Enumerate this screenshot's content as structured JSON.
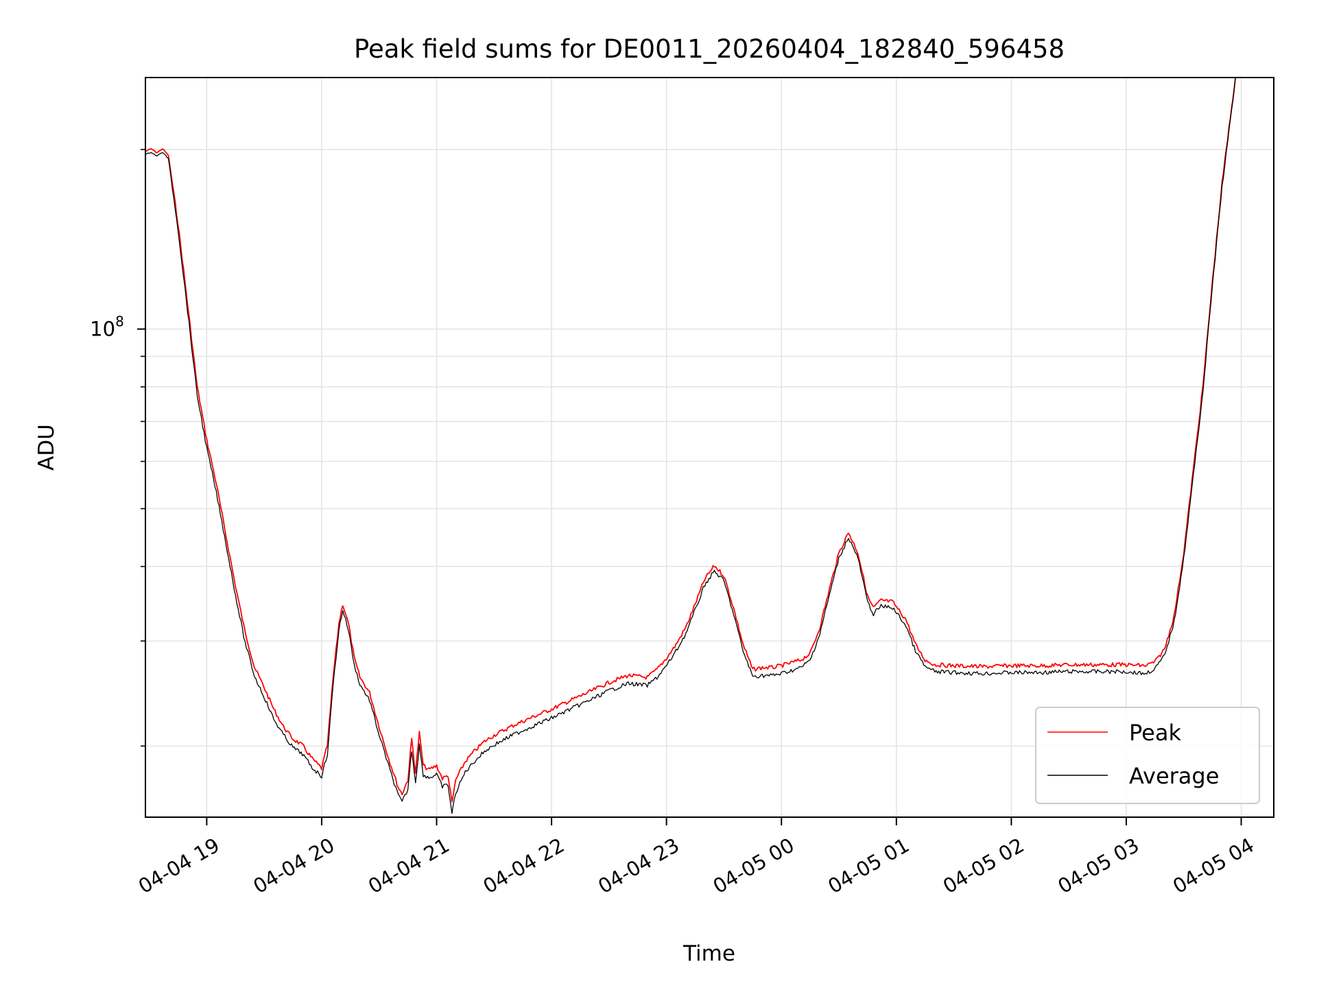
{
  "chart_data": {
    "type": "line",
    "title": "Peak field sums for DE0011_20260404_182840_596458",
    "xlabel": "Time",
    "ylabel": "ADU",
    "y_scale": "log",
    "grid": true,
    "legend_position": "bottom-right",
    "xlim": [
      "2026-04-04 18:28",
      "2026-04-05 04:17"
    ],
    "ylim": [
      15200000,
      264000000
    ],
    "x_ticks": [
      {
        "time": "2026-04-04 19:00",
        "label": "04-04 19"
      },
      {
        "time": "2026-04-04 20:00",
        "label": "04-04 20"
      },
      {
        "time": "2026-04-04 21:00",
        "label": "04-04 21"
      },
      {
        "time": "2026-04-04 22:00",
        "label": "04-04 22"
      },
      {
        "time": "2026-04-04 23:00",
        "label": "04-04 23"
      },
      {
        "time": "2026-04-05 00:00",
        "label": "04-05 00"
      },
      {
        "time": "2026-04-05 01:00",
        "label": "04-05 01"
      },
      {
        "time": "2026-04-05 02:00",
        "label": "04-05 02"
      },
      {
        "time": "2026-04-05 03:00",
        "label": "04-05 03"
      },
      {
        "time": "2026-04-05 04:00",
        "label": "04-05 04"
      }
    ],
    "y_major_ticks": [
      {
        "value": 100000000,
        "base": "10",
        "exp": "8"
      }
    ],
    "y_minor_ticks": [
      20000000,
      30000000,
      40000000,
      50000000,
      60000000,
      70000000,
      80000000,
      90000000,
      200000000
    ],
    "series": [
      {
        "name": "Peak",
        "color": "#ff0000",
        "points": [
          [
            "2026-04-04 18:28",
            198000000
          ],
          [
            "2026-04-04 18:31",
            200000000
          ],
          [
            "2026-04-04 18:34",
            197000000
          ],
          [
            "2026-04-04 18:37",
            200000000
          ],
          [
            "2026-04-04 18:40",
            195000000
          ],
          [
            "2026-04-04 18:45",
            150000000
          ],
          [
            "2026-04-04 18:50",
            110000000
          ],
          [
            "2026-04-04 18:55",
            80000000
          ],
          [
            "2026-04-04 19:00",
            65000000
          ],
          [
            "2026-04-04 19:05",
            55000000
          ],
          [
            "2026-04-04 19:10",
            45000000
          ],
          [
            "2026-04-04 19:15",
            37000000
          ],
          [
            "2026-04-04 19:20",
            31000000
          ],
          [
            "2026-04-04 19:25",
            27000000
          ],
          [
            "2026-04-04 19:30",
            25000000
          ],
          [
            "2026-04-04 19:35",
            23000000
          ],
          [
            "2026-04-04 19:40",
            21500000
          ],
          [
            "2026-04-04 19:45",
            20500000
          ],
          [
            "2026-04-04 19:50",
            20000000
          ],
          [
            "2026-04-04 19:55",
            19000000
          ],
          [
            "2026-04-04 20:00",
            18300000
          ],
          [
            "2026-04-04 20:03",
            20000000
          ],
          [
            "2026-04-04 20:06",
            26000000
          ],
          [
            "2026-04-04 20:09",
            32000000
          ],
          [
            "2026-04-04 20:11",
            34500000
          ],
          [
            "2026-04-04 20:14",
            32000000
          ],
          [
            "2026-04-04 20:17",
            28000000
          ],
          [
            "2026-04-04 20:20",
            26000000
          ],
          [
            "2026-04-04 20:25",
            24500000
          ],
          [
            "2026-04-04 20:30",
            21500000
          ],
          [
            "2026-04-04 20:35",
            19000000
          ],
          [
            "2026-04-04 20:40",
            17000000
          ],
          [
            "2026-04-04 20:42",
            16600000
          ],
          [
            "2026-04-04 20:45",
            17500000
          ],
          [
            "2026-04-04 20:47",
            20500000
          ],
          [
            "2026-04-04 20:49",
            18000000
          ],
          [
            "2026-04-04 20:51",
            21000000
          ],
          [
            "2026-04-04 20:53",
            18500000
          ],
          [
            "2026-04-04 20:56",
            18200000
          ],
          [
            "2026-04-04 21:00",
            18500000
          ],
          [
            "2026-04-04 21:03",
            17600000
          ],
          [
            "2026-04-04 21:06",
            17800000
          ],
          [
            "2026-04-04 21:08",
            16000000
          ],
          [
            "2026-04-04 21:10",
            17500000
          ],
          [
            "2026-04-04 21:15",
            18800000
          ],
          [
            "2026-04-04 21:20",
            19600000
          ],
          [
            "2026-04-04 21:25",
            20300000
          ],
          [
            "2026-04-04 21:30",
            20800000
          ],
          [
            "2026-04-04 21:40",
            21600000
          ],
          [
            "2026-04-04 21:50",
            22300000
          ],
          [
            "2026-04-04 22:00",
            23000000
          ],
          [
            "2026-04-04 22:10",
            23800000
          ],
          [
            "2026-04-04 22:20",
            24600000
          ],
          [
            "2026-04-04 22:30",
            25500000
          ],
          [
            "2026-04-04 22:40",
            26200000
          ],
          [
            "2026-04-04 22:50",
            26000000
          ],
          [
            "2026-04-04 22:55",
            26800000
          ],
          [
            "2026-04-04 23:00",
            28000000
          ],
          [
            "2026-04-04 23:05",
            29500000
          ],
          [
            "2026-04-04 23:10",
            31500000
          ],
          [
            "2026-04-04 23:15",
            34500000
          ],
          [
            "2026-04-04 23:20",
            38000000
          ],
          [
            "2026-04-04 23:25",
            40000000
          ],
          [
            "2026-04-04 23:30",
            38500000
          ],
          [
            "2026-04-04 23:35",
            34000000
          ],
          [
            "2026-04-04 23:40",
            29500000
          ],
          [
            "2026-04-04 23:45",
            26800000
          ],
          [
            "2026-04-04 23:50",
            27000000
          ],
          [
            "2026-04-04 23:55",
            27000000
          ],
          [
            "2026-04-05 00:00",
            27200000
          ],
          [
            "2026-04-05 00:05",
            27500000
          ],
          [
            "2026-04-05 00:10",
            27800000
          ],
          [
            "2026-04-05 00:15",
            28500000
          ],
          [
            "2026-04-05 00:20",
            31500000
          ],
          [
            "2026-04-05 00:25",
            36500000
          ],
          [
            "2026-04-05 00:30",
            42000000
          ],
          [
            "2026-04-05 00:35",
            45500000
          ],
          [
            "2026-04-05 00:40",
            42000000
          ],
          [
            "2026-04-05 00:45",
            35500000
          ],
          [
            "2026-04-05 00:48",
            34000000
          ],
          [
            "2026-04-05 00:52",
            35000000
          ],
          [
            "2026-04-05 00:58",
            34800000
          ],
          [
            "2026-04-05 01:05",
            32500000
          ],
          [
            "2026-04-05 01:10",
            29500000
          ],
          [
            "2026-04-05 01:15",
            27800000
          ],
          [
            "2026-04-05 01:20",
            27300000
          ],
          [
            "2026-04-05 01:30",
            27200000
          ],
          [
            "2026-04-05 01:45",
            27100000
          ],
          [
            "2026-04-05 02:00",
            27200000
          ],
          [
            "2026-04-05 02:15",
            27200000
          ],
          [
            "2026-04-05 02:30",
            27300000
          ],
          [
            "2026-04-05 02:45",
            27300000
          ],
          [
            "2026-04-05 03:00",
            27300000
          ],
          [
            "2026-04-05 03:10",
            27200000
          ],
          [
            "2026-04-05 03:15",
            27600000
          ],
          [
            "2026-04-05 03:20",
            29000000
          ],
          [
            "2026-04-05 03:25",
            33000000
          ],
          [
            "2026-04-05 03:30",
            42000000
          ],
          [
            "2026-04-05 03:35",
            58000000
          ],
          [
            "2026-04-05 03:40",
            80000000
          ],
          [
            "2026-04-05 03:45",
            120000000
          ],
          [
            "2026-04-05 03:50",
            175000000
          ],
          [
            "2026-04-05 03:55",
            235000000
          ],
          [
            "2026-04-05 03:57",
            264000000
          ]
        ]
      },
      {
        "name": "Average",
        "color": "#000000",
        "points": [
          [
            "2026-04-04 18:28",
            197000000
          ],
          [
            "2026-04-04 18:31",
            199000000
          ],
          [
            "2026-04-04 18:34",
            196000000
          ],
          [
            "2026-04-04 18:37",
            199000000
          ],
          [
            "2026-04-04 18:40",
            194000000
          ],
          [
            "2026-04-04 18:45",
            148000000
          ],
          [
            "2026-04-04 18:50",
            108000000
          ],
          [
            "2026-04-04 18:55",
            78000000
          ],
          [
            "2026-04-04 19:00",
            63500000
          ],
          [
            "2026-04-04 19:05",
            53500000
          ],
          [
            "2026-04-04 19:10",
            44000000
          ],
          [
            "2026-04-04 19:15",
            36000000
          ],
          [
            "2026-04-04 19:20",
            30000000
          ],
          [
            "2026-04-04 19:25",
            26300000
          ],
          [
            "2026-04-04 19:30",
            24300000
          ],
          [
            "2026-04-04 19:35",
            22300000
          ],
          [
            "2026-04-04 19:40",
            21000000
          ],
          [
            "2026-04-04 19:45",
            20000000
          ],
          [
            "2026-04-04 19:50",
            19500000
          ],
          [
            "2026-04-04 19:55",
            18500000
          ],
          [
            "2026-04-04 20:00",
            17900000
          ],
          [
            "2026-04-04 20:03",
            19500000
          ],
          [
            "2026-04-04 20:06",
            25500000
          ],
          [
            "2026-04-04 20:09",
            31500000
          ],
          [
            "2026-04-04 20:11",
            34000000
          ],
          [
            "2026-04-04 20:14",
            31500000
          ],
          [
            "2026-04-04 20:17",
            27500000
          ],
          [
            "2026-04-04 20:20",
            25500000
          ],
          [
            "2026-04-04 20:25",
            24000000
          ],
          [
            "2026-04-04 20:30",
            21000000
          ],
          [
            "2026-04-04 20:35",
            18600000
          ],
          [
            "2026-04-04 20:40",
            16600000
          ],
          [
            "2026-04-04 20:42",
            16200000
          ],
          [
            "2026-04-04 20:45",
            17000000
          ],
          [
            "2026-04-04 20:47",
            19800000
          ],
          [
            "2026-04-04 20:49",
            17500000
          ],
          [
            "2026-04-04 20:51",
            20200000
          ],
          [
            "2026-04-04 20:53",
            18000000
          ],
          [
            "2026-04-04 20:56",
            17800000
          ],
          [
            "2026-04-04 21:00",
            18000000
          ],
          [
            "2026-04-04 21:03",
            17200000
          ],
          [
            "2026-04-04 21:06",
            17300000
          ],
          [
            "2026-04-04 21:08",
            15500000
          ],
          [
            "2026-04-04 21:10",
            16800000
          ],
          [
            "2026-04-04 21:15",
            18200000
          ],
          [
            "2026-04-04 21:20",
            19000000
          ],
          [
            "2026-04-04 21:25",
            19700000
          ],
          [
            "2026-04-04 21:30",
            20200000
          ],
          [
            "2026-04-04 21:40",
            21000000
          ],
          [
            "2026-04-04 21:50",
            21700000
          ],
          [
            "2026-04-04 22:00",
            22400000
          ],
          [
            "2026-04-04 22:10",
            23200000
          ],
          [
            "2026-04-04 22:20",
            24000000
          ],
          [
            "2026-04-04 22:30",
            24900000
          ],
          [
            "2026-04-04 22:40",
            25600000
          ],
          [
            "2026-04-04 22:50",
            25400000
          ],
          [
            "2026-04-04 22:55",
            26200000
          ],
          [
            "2026-04-04 23:00",
            27400000
          ],
          [
            "2026-04-04 23:05",
            29000000
          ],
          [
            "2026-04-04 23:10",
            31000000
          ],
          [
            "2026-04-04 23:15",
            34000000
          ],
          [
            "2026-04-04 23:20",
            37500000
          ],
          [
            "2026-04-04 23:25",
            39500000
          ],
          [
            "2026-04-04 23:30",
            38000000
          ],
          [
            "2026-04-04 23:35",
            33500000
          ],
          [
            "2026-04-04 23:40",
            29000000
          ],
          [
            "2026-04-04 23:45",
            26300000
          ],
          [
            "2026-04-04 23:50",
            26400000
          ],
          [
            "2026-04-04 23:55",
            26400000
          ],
          [
            "2026-04-05 00:00",
            26600000
          ],
          [
            "2026-04-05 00:05",
            26900000
          ],
          [
            "2026-04-05 00:10",
            27200000
          ],
          [
            "2026-04-05 00:15",
            28000000
          ],
          [
            "2026-04-05 00:20",
            31000000
          ],
          [
            "2026-04-05 00:25",
            36000000
          ],
          [
            "2026-04-05 00:30",
            41500000
          ],
          [
            "2026-04-05 00:35",
            45000000
          ],
          [
            "2026-04-05 00:40",
            41500000
          ],
          [
            "2026-04-05 00:45",
            35000000
          ],
          [
            "2026-04-05 00:48",
            33500000
          ],
          [
            "2026-04-05 00:52",
            34500000
          ],
          [
            "2026-04-05 00:58",
            34300000
          ],
          [
            "2026-04-05 01:05",
            32000000
          ],
          [
            "2026-04-05 01:10",
            29000000
          ],
          [
            "2026-04-05 01:15",
            27300000
          ],
          [
            "2026-04-05 01:20",
            26800000
          ],
          [
            "2026-04-05 01:30",
            26700000
          ],
          [
            "2026-04-05 01:45",
            26600000
          ],
          [
            "2026-04-05 02:00",
            26700000
          ],
          [
            "2026-04-05 02:15",
            26700000
          ],
          [
            "2026-04-05 02:30",
            26800000
          ],
          [
            "2026-04-05 02:45",
            26800000
          ],
          [
            "2026-04-05 03:00",
            26800000
          ],
          [
            "2026-04-05 03:10",
            26600000
          ],
          [
            "2026-04-05 03:15",
            27100000
          ],
          [
            "2026-04-05 03:20",
            28500000
          ],
          [
            "2026-04-05 03:25",
            32500000
          ],
          [
            "2026-04-05 03:30",
            41500000
          ],
          [
            "2026-04-05 03:35",
            57000000
          ],
          [
            "2026-04-05 03:40",
            79000000
          ],
          [
            "2026-04-05 03:45",
            119000000
          ],
          [
            "2026-04-05 03:50",
            174000000
          ],
          [
            "2026-04-05 03:55",
            234000000
          ],
          [
            "2026-04-05 03:57",
            264000000
          ]
        ]
      }
    ]
  }
}
